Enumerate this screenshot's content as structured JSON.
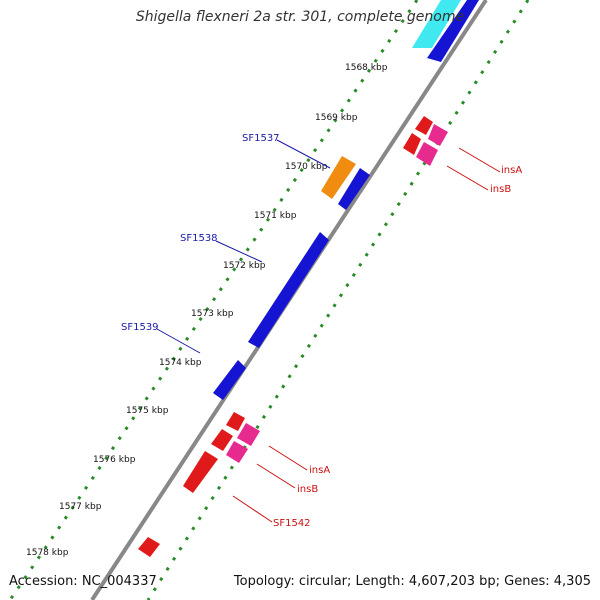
{
  "title": "Shigella flexneri 2a str. 301, complete genome",
  "footer": {
    "accession": "Accession: NC_004337",
    "summary": "Topology: circular; Length: 4,607,203 bp; Genes: 4,305"
  },
  "colors": {
    "backbone": "#888888",
    "tick_dots": "#2a8a2a",
    "forward_gene": "#1414d2",
    "forward_label": "#1a1aaa",
    "reverse_gene": "#e01a1a",
    "reverse_label": "#cc1010",
    "pink_gene": "#e62a8e",
    "orange_gene": "#f08c10",
    "cyan_gene": "#40e8f0"
  },
  "ticks": [
    "1568 kbp",
    "1569 kbp",
    "1570 kbp",
    "1571 kbp",
    "1572 kbp",
    "1573 kbp",
    "1574 kbp",
    "1575 kbp",
    "1576 kbp",
    "1577 kbp",
    "1578 kbp"
  ],
  "gene_labels": [
    "SF1537",
    "SF1538",
    "SF1539",
    "insA",
    "insB",
    "insA",
    "insB",
    "SF1542"
  ]
}
